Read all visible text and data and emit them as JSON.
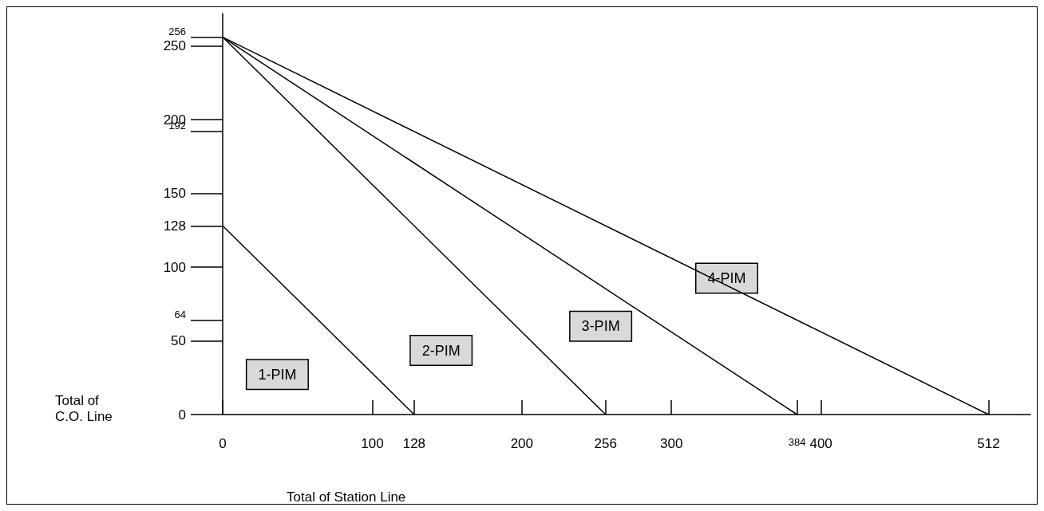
{
  "chart_data": {
    "type": "line",
    "xlabel": "Total of Station Line",
    "ylabel": "Total of C.O. Line",
    "series": [
      {
        "color": "#000000",
        "x": [
          0,
          128
        ],
        "values": [
          128,
          0
        ]
      },
      {
        "color": "#000000",
        "x": [
          0,
          256
        ],
        "values": [
          256,
          0
        ]
      },
      {
        "color": "#000000",
        "x": [
          0,
          384
        ],
        "values": [
          256,
          0
        ]
      },
      {
        "color": "#000000",
        "x": [
          0,
          512
        ],
        "values": [
          256,
          0
        ]
      }
    ],
    "xlim": [
      0,
      540
    ],
    "xticks": [
      0,
      100,
      128,
      200,
      256,
      300,
      384,
      400,
      512
    ],
    "ylim": [
      0,
      272
    ],
    "yticks": [
      0,
      50,
      64,
      100,
      128,
      150,
      192,
      200,
      250,
      256
    ],
    "annotations": [
      "1-PIM",
      "2-PIM",
      "3-PIM",
      "4-PIM"
    ],
    "grid": false,
    "marker": "none",
    "line_style": "solid"
  }
}
